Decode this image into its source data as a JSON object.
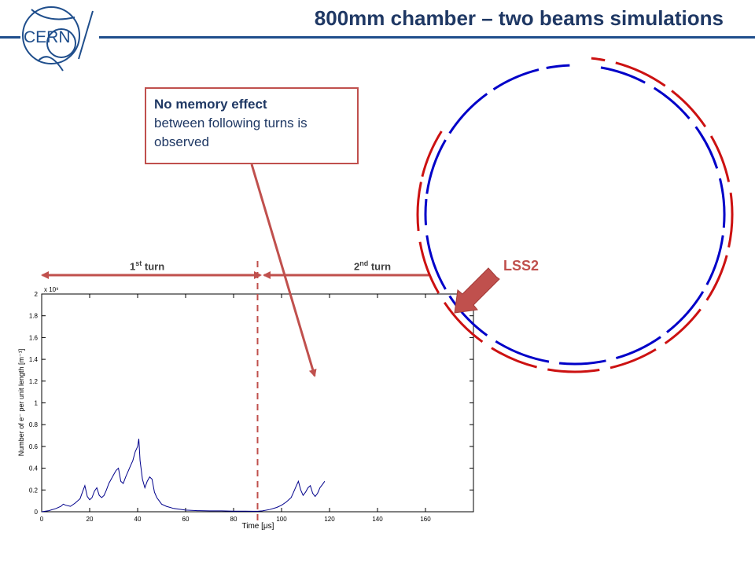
{
  "header": {
    "title": "800mm chamber – two beams simulations",
    "logo_text": "CERN"
  },
  "callout": {
    "bold": "No memory effect",
    "rest": "between following turns is observed"
  },
  "turns": {
    "first_num": "1",
    "first_sup": "st",
    "first_word": " turn",
    "second_num": "2",
    "second_sup": "nd",
    "second_word": " turn"
  },
  "ring": {
    "label": "LSS2",
    "colors": {
      "beam1": "#0000c8",
      "beam2": "#cc1111"
    }
  },
  "colors": {
    "accent": "#c0504d",
    "title": "#1f3864",
    "plot_line": "#00008b"
  },
  "chart_data": {
    "type": "line",
    "xlabel": "Time [μs]",
    "ylabel": "Number of e⁻ per unit length [m⁻¹]",
    "y_exponent": "x 10⁹",
    "xlim": [
      0,
      180
    ],
    "ylim": [
      0,
      2
    ],
    "xticks": [
      "0",
      "20",
      "40",
      "60",
      "80",
      "100",
      "120",
      "140",
      "160"
    ],
    "yticks": [
      "0",
      "0.2",
      "0.4",
      "0.6",
      "0.8",
      "1",
      "1.2",
      "1.4",
      "1.6",
      "1.8",
      "2"
    ],
    "turn_boundary_x": 90,
    "series": [
      {
        "x": [
          0,
          3,
          6,
          8,
          9,
          10,
          12,
          14,
          16,
          17,
          18,
          19,
          20,
          21,
          22,
          23,
          24,
          25,
          26,
          27,
          28,
          29,
          30,
          31,
          32,
          33,
          34,
          35,
          36,
          37,
          38,
          39,
          40,
          40.5,
          41,
          42,
          43,
          44,
          45,
          46,
          47,
          48,
          49,
          50,
          52,
          55,
          60,
          65,
          70,
          75,
          80,
          85,
          88,
          90,
          92,
          95,
          98,
          100,
          102,
          104,
          105,
          106,
          107,
          108,
          109,
          110,
          111,
          112,
          113,
          114,
          115,
          116,
          117,
          118
        ],
        "values": [
          0,
          0.01,
          0.03,
          0.05,
          0.07,
          0.06,
          0.05,
          0.08,
          0.12,
          0.18,
          0.24,
          0.14,
          0.11,
          0.13,
          0.19,
          0.22,
          0.15,
          0.13,
          0.15,
          0.2,
          0.26,
          0.3,
          0.34,
          0.38,
          0.4,
          0.28,
          0.26,
          0.32,
          0.37,
          0.42,
          0.47,
          0.55,
          0.6,
          0.67,
          0.47,
          0.3,
          0.22,
          0.28,
          0.32,
          0.3,
          0.18,
          0.13,
          0.1,
          0.07,
          0.05,
          0.03,
          0.015,
          0.01,
          0.008,
          0.008,
          0.006,
          0.005,
          0.004,
          0.004,
          0.008,
          0.02,
          0.04,
          0.06,
          0.09,
          0.13,
          0.18,
          0.23,
          0.28,
          0.2,
          0.15,
          0.18,
          0.22,
          0.24,
          0.17,
          0.14,
          0.17,
          0.22,
          0.25,
          0.28
        ]
      }
    ]
  }
}
